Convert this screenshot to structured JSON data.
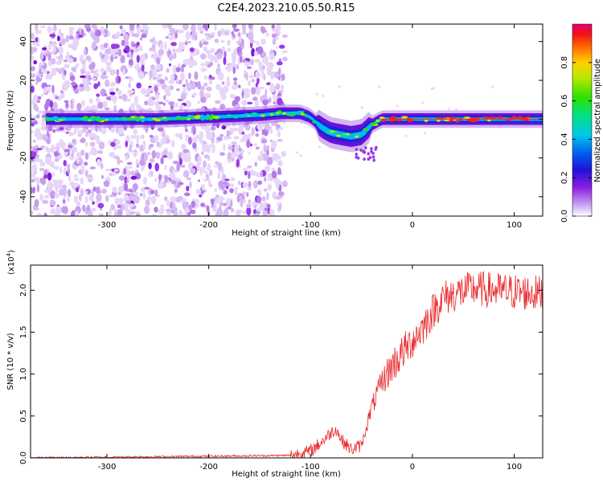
{
  "title": "C2E4.2023.210.05.50.R15",
  "colors": {
    "scatter_purple": "#9a3ce6",
    "dense_blue": "#2a1fd6",
    "snr_line": "#e8272a",
    "background": "#ffffff"
  },
  "chart_data": [
    {
      "type": "heatmap",
      "xlabel": "Height of straight line (km)",
      "ylabel": "Frequency (Hz)",
      "xlim": [
        -375,
        128
      ],
      "ylim": [
        -50,
        49
      ],
      "xticks": [
        -300,
        -200,
        -100,
        0,
        100
      ],
      "yticks": [
        -40,
        -20,
        0,
        20,
        40
      ],
      "xtick_labels": [
        "-300",
        "-200",
        "-100",
        "0",
        "100"
      ],
      "ytick_labels": [
        "-40",
        "-20",
        "0",
        "20",
        "40"
      ],
      "colorbar": {
        "label": "Normalized spectral amplitude",
        "range": [
          0,
          1
        ],
        "ticks": [
          0.0,
          0.2,
          0.4,
          0.6,
          0.8
        ],
        "tick_labels": [
          "0.0",
          "0.2",
          "0.4",
          "0.6",
          "0.8"
        ],
        "colormap": "rainbow (white-purple-blue-cyan-green-yellow-red)"
      },
      "ridge_frequency": {
        "x": [
          -360,
          -300,
          -250,
          -200,
          -150,
          -130,
          -110,
          -100,
          -90,
          -80,
          -70,
          -60,
          -50,
          -40,
          -30,
          -20,
          0,
          50,
          128
        ],
        "y": [
          0,
          0,
          0,
          1,
          2,
          3,
          3,
          1,
          -4,
          -7,
          -8,
          -9,
          -8,
          -3,
          0,
          0,
          0,
          0,
          0
        ]
      },
      "scatter_region_x": [
        -375,
        -125
      ],
      "grid": false
    },
    {
      "type": "line",
      "xlabel": "Height of straight line (km)",
      "ylabel": "SNR (10 * v/v)",
      "multiplier_label": "(x10",
      "multiplier_exp": "4",
      "multiplier_close": ")",
      "xlim": [
        -375,
        128
      ],
      "ylim": [
        0,
        2.3
      ],
      "xticks": [
        -300,
        -200,
        -100,
        0,
        100
      ],
      "yticks": [
        0.0,
        0.5,
        1.0,
        1.5,
        2.0
      ],
      "xtick_labels": [
        "-300",
        "-200",
        "-100",
        "0",
        "100"
      ],
      "ytick_labels": [
        "0.0",
        "0.5",
        "1.0",
        "1.5",
        "2.0"
      ],
      "series": [
        {
          "color": "#e8272a",
          "x": [
            -375,
            -200,
            -120,
            -100,
            -90,
            -80,
            -75,
            -70,
            -60,
            -50,
            -40,
            -30,
            -20,
            -10,
            0,
            10,
            20,
            30,
            40,
            60,
            80,
            100,
            128
          ],
          "y": [
            0.0,
            0.02,
            0.03,
            0.08,
            0.18,
            0.3,
            0.35,
            0.22,
            0.1,
            0.15,
            0.6,
            0.9,
            1.1,
            1.25,
            1.4,
            1.55,
            1.75,
            1.9,
            1.95,
            2.02,
            2.0,
            1.98,
            1.96
          ]
        }
      ],
      "grid": false
    }
  ]
}
